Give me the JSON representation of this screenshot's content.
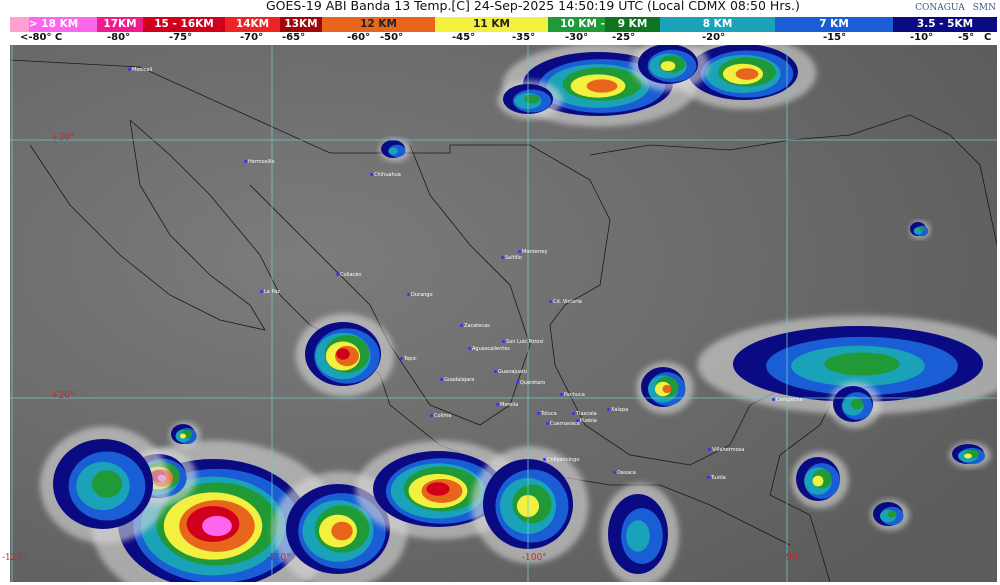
{
  "header": {
    "title": "GOES-19 ABI Banda 13 Temp.[C] 24-Sep-2025 14:50:19 UTC (Local CDMX  08:50 Hrs.)",
    "logos": {
      "conagua": "CONAGUA",
      "smn": "SMN"
    }
  },
  "legend": {
    "segments": [
      {
        "label": "> 18 KM",
        "color": "#ff66ee"
      },
      {
        "label": "17KM",
        "color": "#ee1c8c"
      },
      {
        "label": "15 - 16KM",
        "color": "#d0001c"
      },
      {
        "label": "14KM",
        "color": "#ee2424"
      },
      {
        "label": "13KM",
        "color": "#a00808"
      },
      {
        "label": "12 KM",
        "color": "#e8661c"
      },
      {
        "label": "11 KM",
        "color": "#f4f040"
      },
      {
        "label": "10 KM -",
        "color": "#1f9a36"
      },
      {
        "label": "9 KM",
        "color": "#0d7520"
      },
      {
        "label": "8 KM",
        "color": "#1aa2b8"
      },
      {
        "label": "7 KM",
        "color": "#1a5ed6"
      },
      {
        "label": "3.5 - 5KM",
        "color": "#0a0a82"
      }
    ],
    "temps": [
      "<-80° C",
      "-80°",
      "-75°",
      "-70°",
      "-65°",
      "-60°",
      "-50°",
      "-45°",
      "-35°",
      "-30°",
      "-25°",
      "-20°",
      "-15°",
      "-10°",
      "-5°",
      "C"
    ]
  },
  "map": {
    "latitudes": [
      "+30°",
      "+20°"
    ],
    "longitudes": [
      "-120°",
      "-110°",
      "-100°",
      "-90°"
    ],
    "cities": [
      "Mexicali",
      "Hermosillo",
      "Chihuahua",
      "Culiacán",
      "La Paz",
      "Durango",
      "Monterrey",
      "Saltillo",
      "Cd. Victoria",
      "Zacatecas",
      "San Luis Potosí",
      "Aguascalientes",
      "Tepic",
      "Guadalajara",
      "Guanajuato",
      "Querétaro",
      "Pachuca",
      "Morelia",
      "Colima",
      "Toluca",
      "Tlaxcala",
      "Puebla",
      "Cuernavaca",
      "Xalapa",
      "Chilpancingo",
      "Oaxaca",
      "Villahermosa",
      "Tuxtla",
      "Campeche"
    ]
  }
}
